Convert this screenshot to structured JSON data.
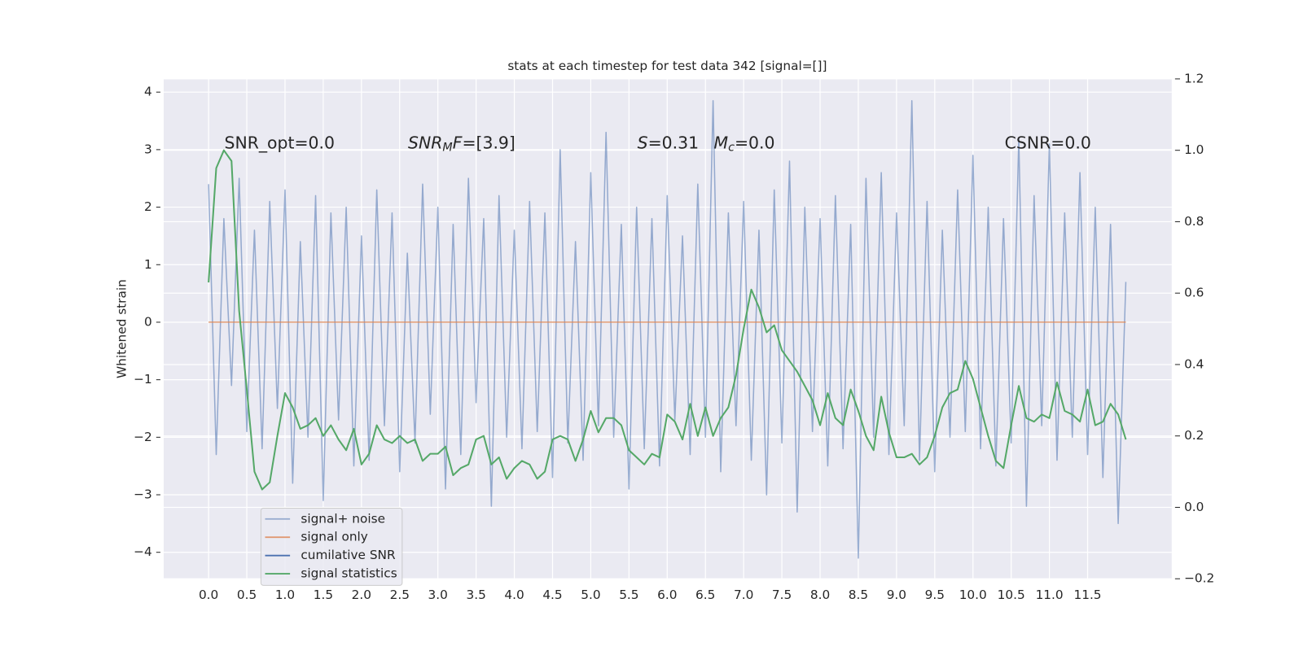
{
  "chart_data": {
    "type": "line",
    "title": "stats at each timestep for test data 342 [signal=[]]",
    "y_label": "Whitened strain",
    "x": [
      0,
      0.1,
      0.2,
      0.3,
      0.4,
      0.5,
      0.6,
      0.7,
      0.8,
      0.9,
      1,
      1.1,
      1.2,
      1.3,
      1.4,
      1.5,
      1.6,
      1.7,
      1.8,
      1.9,
      2,
      2.1,
      2.2,
      2.3,
      2.4,
      2.5,
      2.6,
      2.7,
      2.8,
      2.9,
      3,
      3.1,
      3.2,
      3.3,
      3.4,
      3.5,
      3.6,
      3.7,
      3.8,
      3.9,
      4,
      4.1,
      4.2,
      4.3,
      4.4,
      4.5,
      4.6,
      4.7,
      4.8,
      4.9,
      5,
      5.1,
      5.2,
      5.3,
      5.4,
      5.5,
      5.6,
      5.7,
      5.8,
      5.9,
      6,
      6.1,
      6.2,
      6.3,
      6.4,
      6.5,
      6.6,
      6.7,
      6.8,
      6.9,
      7,
      7.1,
      7.2,
      7.3,
      7.4,
      7.5,
      7.6,
      7.7,
      7.8,
      7.9,
      8,
      8.1,
      8.2,
      8.3,
      8.4,
      8.5,
      8.6,
      8.7,
      8.8,
      8.9,
      9,
      9.1,
      9.2,
      9.3,
      9.4,
      9.5,
      9.6,
      9.7,
      9.8,
      9.9,
      10,
      10.1,
      10.2,
      10.3,
      10.4,
      10.5,
      10.6,
      10.7,
      10.8,
      10.9,
      11,
      11.1,
      11.2,
      11.3,
      11.4,
      11.5,
      11.6,
      11.7,
      11.8,
      11.9,
      12
    ],
    "series": [
      {
        "name": "signal+ noise",
        "color": "#4c72b0",
        "values": [
          2.4,
          -2.3,
          1.8,
          -1.1,
          2.5,
          -1.9,
          1.6,
          -2.2,
          2.1,
          -1.5,
          2.3,
          -2.8,
          1.4,
          -2.0,
          2.2,
          -3.1,
          1.9,
          -1.7,
          2.0,
          -2.5,
          1.5,
          -2.4,
          2.3,
          -1.8,
          1.9,
          -2.6,
          1.2,
          -2.1,
          2.4,
          -1.6,
          2.0,
          -2.9,
          1.7,
          -2.3,
          2.5,
          -1.4,
          1.8,
          -3.2,
          2.2,
          -2.0,
          1.6,
          -2.2,
          2.1,
          -1.9,
          1.9,
          -2.7,
          3.0,
          -2.1,
          1.4,
          -2.4,
          2.6,
          -1.8,
          3.3,
          -2.0,
          1.7,
          -2.9,
          2.0,
          -2.2,
          1.8,
          -2.5,
          2.2,
          -1.7,
          1.5,
          -2.3,
          2.4,
          -2.0,
          3.85,
          -2.6,
          1.9,
          -1.8,
          2.1,
          -2.4,
          1.6,
          -3.0,
          2.3,
          -2.1,
          2.8,
          -3.3,
          2.0,
          -1.9,
          1.8,
          -2.5,
          2.2,
          -2.2,
          1.7,
          -4.1,
          2.5,
          -2.0,
          2.6,
          -2.3,
          1.9,
          -1.8,
          3.85,
          -2.4,
          2.1,
          -2.6,
          1.6,
          -2.0,
          2.3,
          -1.9,
          2.9,
          -2.2,
          2.0,
          -2.5,
          1.8,
          -2.1,
          3.2,
          -3.2,
          2.2,
          -1.8,
          3.1,
          -2.4,
          1.9,
          -2.0,
          2.6,
          -2.3,
          2.0,
          -2.7,
          1.7,
          -3.5,
          0.7
        ]
      },
      {
        "name": "signal only",
        "color": "#dd8452",
        "values": [
          0,
          0,
          0,
          0,
          0,
          0,
          0,
          0,
          0,
          0,
          0,
          0,
          0,
          0,
          0,
          0,
          0,
          0,
          0,
          0,
          0,
          0,
          0,
          0,
          0,
          0,
          0,
          0,
          0,
          0,
          0,
          0,
          0,
          0,
          0,
          0,
          0,
          0,
          0,
          0,
          0,
          0,
          0,
          0,
          0,
          0,
          0,
          0,
          0,
          0,
          0,
          0,
          0,
          0,
          0,
          0,
          0,
          0,
          0,
          0,
          0,
          0,
          0,
          0,
          0,
          0,
          0,
          0,
          0,
          0,
          0,
          0,
          0,
          0,
          0,
          0,
          0,
          0,
          0,
          0,
          0,
          0,
          0,
          0,
          0,
          0,
          0,
          0,
          0,
          0,
          0,
          0,
          0,
          0,
          0,
          0,
          0,
          0,
          0,
          0,
          0,
          0,
          0,
          0,
          0,
          0,
          0,
          0,
          0,
          0,
          0,
          0,
          0,
          0,
          0,
          0,
          0,
          0,
          0,
          0,
          0
        ]
      },
      {
        "name": "cumilative SNR",
        "color": "#4c72b0",
        "values": [
          null,
          null,
          null,
          null,
          null,
          null,
          null,
          null,
          null,
          null,
          null,
          null,
          null,
          null,
          null,
          null,
          null,
          null,
          null,
          null,
          null,
          null,
          null,
          null,
          null,
          null,
          null,
          null,
          null,
          null,
          null,
          null,
          null,
          null,
          null,
          null,
          null,
          null,
          null,
          null,
          null,
          null,
          null,
          null,
          null,
          null,
          null,
          null,
          null,
          null,
          null,
          null,
          null,
          null,
          null,
          null,
          null,
          null,
          null,
          null,
          null,
          null,
          null,
          null,
          null,
          null,
          null,
          null,
          null,
          null,
          null,
          null,
          null,
          null,
          null,
          null,
          null,
          null,
          null,
          null,
          null,
          null,
          null,
          null,
          null,
          null,
          null,
          null,
          null,
          null,
          null,
          null,
          null,
          null,
          null,
          null,
          null,
          null,
          null,
          null,
          null,
          null,
          null,
          null,
          null,
          null,
          null,
          null,
          null,
          null,
          null,
          null,
          null,
          null,
          null,
          null,
          null,
          null,
          null,
          null,
          null
        ]
      },
      {
        "name": "signal statistics",
        "color": "#55a868",
        "axis": "y2",
        "values": [
          0.63,
          0.95,
          1.0,
          0.97,
          0.55,
          0.33,
          0.1,
          0.05,
          0.07,
          0.2,
          0.32,
          0.28,
          0.22,
          0.23,
          0.25,
          0.2,
          0.23,
          0.19,
          0.16,
          0.22,
          0.12,
          0.15,
          0.23,
          0.19,
          0.18,
          0.2,
          0.18,
          0.19,
          0.13,
          0.15,
          0.15,
          0.17,
          0.09,
          0.11,
          0.12,
          0.19,
          0.2,
          0.12,
          0.14,
          0.08,
          0.11,
          0.13,
          0.12,
          0.08,
          0.1,
          0.19,
          0.2,
          0.19,
          0.13,
          0.19,
          0.27,
          0.21,
          0.25,
          0.25,
          0.23,
          0.16,
          0.14,
          0.12,
          0.15,
          0.14,
          0.26,
          0.24,
          0.19,
          0.29,
          0.2,
          0.28,
          0.2,
          0.25,
          0.28,
          0.37,
          0.5,
          0.61,
          0.56,
          0.49,
          0.51,
          0.44,
          0.41,
          0.38,
          0.34,
          0.3,
          0.23,
          0.32,
          0.25,
          0.23,
          0.33,
          0.27,
          0.2,
          0.16,
          0.31,
          0.21,
          0.14,
          0.14,
          0.15,
          0.12,
          0.14,
          0.2,
          0.28,
          0.32,
          0.33,
          0.41,
          0.36,
          0.28,
          0.2,
          0.13,
          0.11,
          0.23,
          0.34,
          0.25,
          0.24,
          0.26,
          0.25,
          0.35,
          0.27,
          0.26,
          0.24,
          0.33,
          0.23,
          0.24,
          0.29,
          0.26,
          0.19
        ]
      }
    ],
    "xlim": [
      -0.587,
      12.6
    ],
    "ylim": [
      -4.46,
      4.23
    ],
    "y2lim": [
      -0.2,
      1.2
    ],
    "xticks": [
      {
        "value": 0,
        "label": "0.0"
      },
      0.5,
      {
        "value": 1,
        "label": "1.0"
      },
      1.5,
      {
        "value": 2,
        "label": "2.0"
      },
      2.5,
      {
        "value": 3,
        "label": "3.0"
      },
      3.5,
      {
        "value": 4,
        "label": "4.0"
      },
      4.5,
      {
        "value": 5,
        "label": "5.0"
      },
      5.5,
      {
        "value": 6,
        "label": "6.0"
      },
      6.5,
      {
        "value": 7,
        "label": "7.0"
      },
      7.5,
      {
        "value": 8,
        "label": "8.0"
      },
      8.5,
      {
        "value": 9,
        "label": "9.0"
      },
      9.5,
      {
        "value": 10,
        "label": "10.0"
      },
      10.5,
      {
        "value": 11,
        "label": "11.0"
      },
      11.5
    ],
    "yticks": [
      {
        "value": -4,
        "label": "−4"
      },
      {
        "value": -3,
        "label": "−3"
      },
      {
        "value": -2,
        "label": "−2"
      },
      {
        "value": -1,
        "label": "−1"
      },
      0,
      1,
      2,
      3,
      4
    ],
    "y2ticks": [
      {
        "value": -0.2,
        "label": "−0.2"
      },
      {
        "value": 0,
        "label": "0.0"
      },
      0.2,
      0.4,
      0.6,
      0.8,
      {
        "value": 1,
        "label": "1.0"
      },
      1.2
    ],
    "grid": true,
    "legend": "lower left",
    "annotations": [
      {
        "parts": [
          {
            "text": "SNR_opt=0.0"
          }
        ]
      },
      {
        "parts": [
          {
            "text": "SNR",
            "italic": true
          },
          {
            "text": "M",
            "italic": true,
            "sub": true
          },
          {
            "text": "F",
            "italic": true
          },
          {
            "text": "=[3.9]"
          }
        ]
      },
      {
        "parts": [
          {
            "text": "S",
            "italic": true
          },
          {
            "text": "=0.31"
          }
        ]
      },
      {
        "parts": [
          {
            "text": "M",
            "italic": true
          },
          {
            "text": "c",
            "italic": true,
            "sub": true
          },
          {
            "text": "=0.0"
          }
        ]
      },
      {
        "parts": [
          {
            "text": "CSNR=0.0"
          }
        ]
      }
    ]
  }
}
